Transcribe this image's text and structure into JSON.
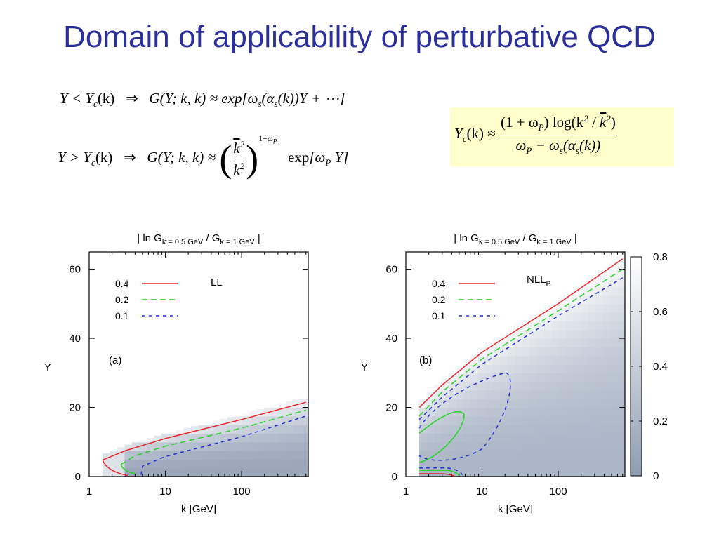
{
  "slide": {
    "title": "Domain of applicability of perturbative QCD"
  },
  "equations": {
    "eq1": {
      "lhs": "Y < Y",
      "lhs_sub": "c",
      "lhs_arg": "(k)",
      "arrow": "⇒",
      "rhs_g": "G(Y; k, k) ≈ exp",
      "rhs_body": "[ω",
      "rhs_sub": "s",
      "rhs_mid": "(α",
      "rhs_sub2": "s",
      "rhs_end": "(k))Y + ⋯]"
    },
    "eq2": {
      "lhs": "Y > Y",
      "lhs_sub": "c",
      "lhs_arg": "(k)",
      "arrow": "⇒",
      "rhs_g": "G(Y; k, k) ≈",
      "frac_num": "k",
      "frac_num_exp": "2",
      "frac_den": "k",
      "frac_den_exp": "2",
      "power": "1+ω",
      "power_sub": "P",
      "exp_text": "exp",
      "exp_body": "[ω",
      "exp_sub": "P",
      "exp_end": "Y]"
    },
    "eq3": {
      "lhs": "Y",
      "lhs_sub": "c",
      "lhs_arg": "(k) ≈",
      "num": "(1 + ω",
      "num_sub": "P",
      "num_mid": ") log(k",
      "num_exp": "2",
      "num_slash": " / ",
      "num_k": "k",
      "num_exp2": "2",
      "num_end": ")",
      "den": "ω",
      "den_sub": "P",
      "den_mid": " − ω",
      "den_sub2": "s",
      "den_end1": "(α",
      "den_sub3": "s",
      "den_end": "(k))"
    }
  },
  "plots": {
    "colors": {
      "line_04": "#e8262b",
      "line_02": "#22d622",
      "line_01": "#2030d8",
      "map_low": "#8f9db3",
      "map_high": "#ffffff"
    },
    "title_a": "| ln G",
    "title_sub1": "k = 0.5 GeV",
    "title_mid": " / G",
    "title_sub2": "k = 1 GeV",
    "title_end": " |",
    "ylabel": "Y",
    "xlabel": "k [GeV]",
    "x_ticks": [
      "1",
      "10",
      "100"
    ],
    "y_ticks": [
      "0",
      "20",
      "40",
      "60"
    ],
    "legend": [
      "0.4",
      "0.2",
      "0.1"
    ],
    "panel_a": {
      "tag": "(a)",
      "label": "LL"
    },
    "panel_b": {
      "tag": "(b)",
      "label": "NLL",
      "label_sub": "B"
    },
    "colorbar_ticks": [
      "0",
      "0.2",
      "0.4",
      "0.6",
      "0.8"
    ]
  },
  "chart_data": [
    {
      "type": "heatmap",
      "panel": "(a)",
      "label": "LL",
      "title": "| ln G k = 0.5 GeV / G k = 1 GeV |",
      "xlabel": "k [GeV]",
      "ylabel": "Y",
      "xscale": "log",
      "xlim": [
        1,
        750
      ],
      "ylim": [
        0,
        65
      ],
      "contours": [
        {
          "name": "0.4",
          "style": "solid",
          "color": "#e8262b",
          "points": [
            [
              1.5,
              4.8
            ],
            [
              3,
              7.5
            ],
            [
              10,
              11
            ],
            [
              100,
              16.5
            ],
            [
              700,
              21.5
            ]
          ]
        },
        {
          "name": "0.2",
          "style": "dashed",
          "color": "#22d622",
          "points": [
            [
              2.6,
              3.5
            ],
            [
              4,
              6
            ],
            [
              10,
              8.8
            ],
            [
              100,
              14
            ],
            [
              700,
              19.2
            ]
          ]
        },
        {
          "name": "0.1",
          "style": "dashed",
          "color": "#2030d8",
          "points": [
            [
              4.8,
              0.5
            ],
            [
              5,
              3
            ],
            [
              10,
              5.8
            ],
            [
              100,
              11.5
            ],
            [
              700,
              17.5
            ]
          ]
        }
      ]
    },
    {
      "type": "heatmap",
      "panel": "(b)",
      "label": "NLL_B",
      "title": "| ln G k = 0.5 GeV / G k = 1 GeV |",
      "xlabel": "k [GeV]",
      "ylabel": "Y",
      "xscale": "log",
      "xlim": [
        1,
        750
      ],
      "ylim": [
        0,
        65
      ],
      "colorbar": {
        "min": 0,
        "max": 0.8,
        "ticks": [
          0,
          0.2,
          0.4,
          0.6,
          0.8
        ]
      },
      "contours": [
        {
          "name": "0.4",
          "style": "solid",
          "color": "#e8262b",
          "points": [
            [
              1.5,
              20
            ],
            [
              3,
              26.5
            ],
            [
              10,
              36
            ],
            [
              100,
              50
            ],
            [
              700,
              63
            ]
          ]
        },
        {
          "name": "0.2",
          "style": "dashed",
          "color": "#22d622",
          "points": [
            [
              1.5,
              17.5
            ],
            [
              3,
              24.5
            ],
            [
              10,
              34
            ],
            [
              100,
              48
            ],
            [
              700,
              60
            ]
          ]
        },
        {
          "name": "0.1",
          "style": "dashed",
          "color": "#2030d8",
          "points": [
            [
              1.5,
              16.5
            ],
            [
              3,
              23
            ],
            [
              10,
              32.5
            ],
            [
              100,
              46.5
            ],
            [
              700,
              57.5
            ]
          ]
        }
      ]
    }
  ]
}
